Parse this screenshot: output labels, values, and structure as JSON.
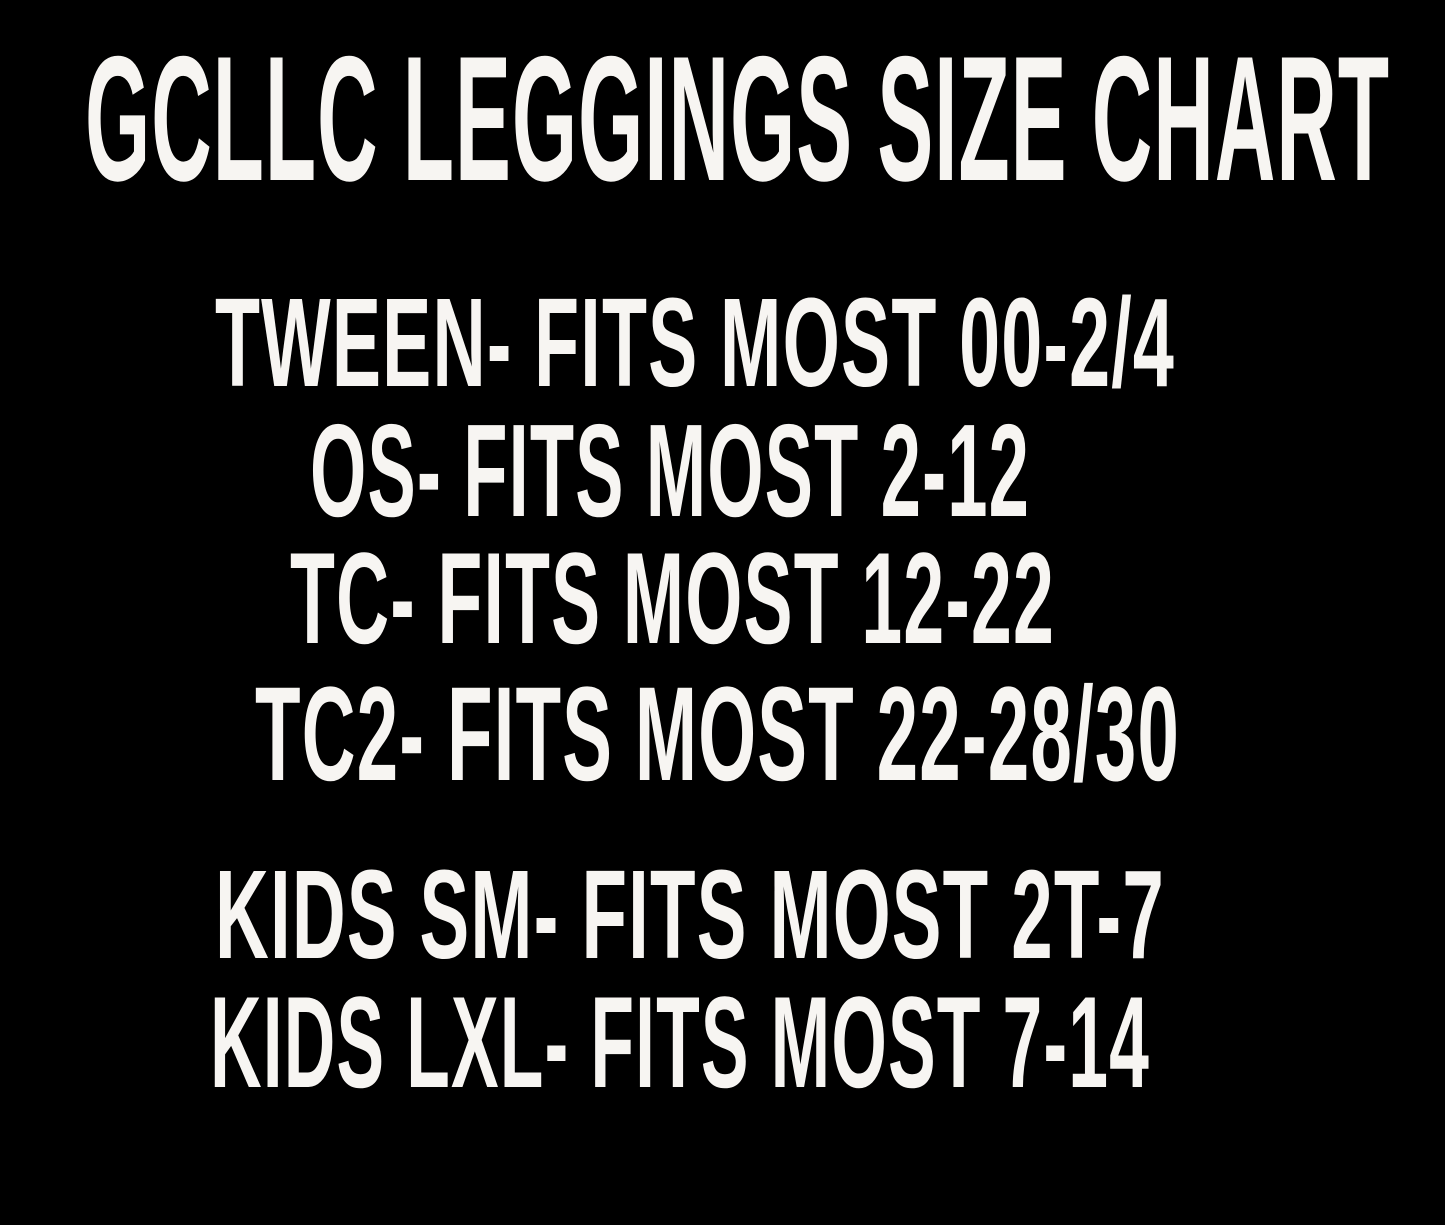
{
  "title": "GCLLC LEGGINGS SIZE CHART",
  "background_color": "#000000",
  "text_color": "#f7f5f2",
  "sizes": [
    {
      "text": "TWEEN- FITS MOST 00-2/4"
    },
    {
      "text": "OS- FITS MOST 2-12"
    },
    {
      "text": "TC- FITS MOST 12-22"
    },
    {
      "text": "TC2- FITS MOST 22-28/30"
    },
    {
      "text": "KIDS SM- FITS MOST 2T-7"
    },
    {
      "text": "KIDS LXL- FITS MOST 7-14"
    }
  ]
}
